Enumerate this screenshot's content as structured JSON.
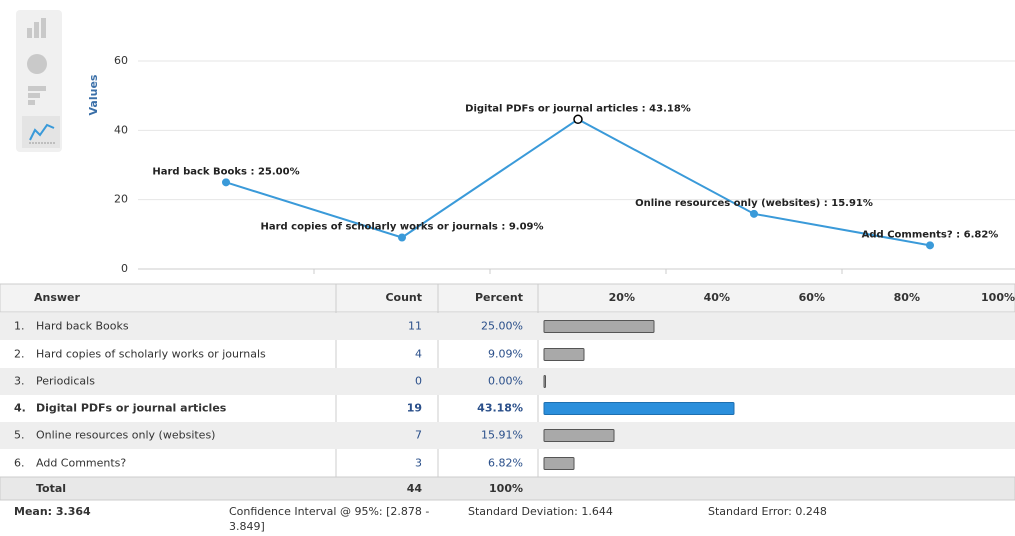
{
  "chart_data": {
    "type": "line",
    "y_label": "Values",
    "values": [
      25,
      9.09,
      43.18,
      15.91,
      6.82
    ],
    "value_labels": [
      "Hard back Books : 25.00%",
      "Hard copies of scholarly works or journals : 9.09%",
      "Digital PDFs or journal articles : 43.18%",
      "Online resources only (websites) : 15.91%",
      "Add Comments? : 6.82%"
    ],
    "color": "#3a9ad9",
    "ylim": [
      0,
      60
    ],
    "yticks": [
      0,
      20,
      40,
      60
    ],
    "grid": true
  },
  "table": {
    "columns": [
      "Answer",
      "Count",
      "Percent"
    ],
    "bar_scale": [
      {
        "value": 20,
        "label": "20%"
      },
      {
        "value": 40,
        "label": "40%"
      },
      {
        "value": 60,
        "label": "60%"
      },
      {
        "value": 80,
        "label": "80%"
      },
      {
        "value": 100,
        "label": "100%"
      }
    ],
    "highlight": 3,
    "rows": [
      {
        "num": "1.",
        "answer": "Hard back Books",
        "count": 11,
        "percent": 25,
        "percent_label": "25.00%"
      },
      {
        "num": "2.",
        "answer": "Hard copies of scholarly works or journals",
        "count": 4,
        "percent": 9.09,
        "percent_label": "9.09%"
      },
      {
        "num": "3.",
        "answer": "Periodicals",
        "count": 0,
        "percent": 0,
        "percent_label": "0.00%"
      },
      {
        "num": "4.",
        "answer": "Digital PDFs or journal articles",
        "count": 19,
        "percent": 43.18,
        "percent_label": "43.18%"
      },
      {
        "num": "5.",
        "answer": "Online resources only (websites)",
        "count": 7,
        "percent": 15.91,
        "percent_label": "15.91%"
      },
      {
        "num": "6.",
        "answer": "Add Comments?",
        "count": 3,
        "percent": 6.82,
        "percent_label": "6.82%"
      }
    ],
    "total": {
      "label": "Total",
      "count": 44,
      "percent": "100%"
    }
  },
  "stats": {
    "mean": "Mean: 3.364",
    "ci": "Confidence Interval @ 95%: [2.878 -",
    "ci2": "3.849]",
    "sd": "Standard Deviation: 1.644",
    "se": "Standard Error: 0.248"
  }
}
